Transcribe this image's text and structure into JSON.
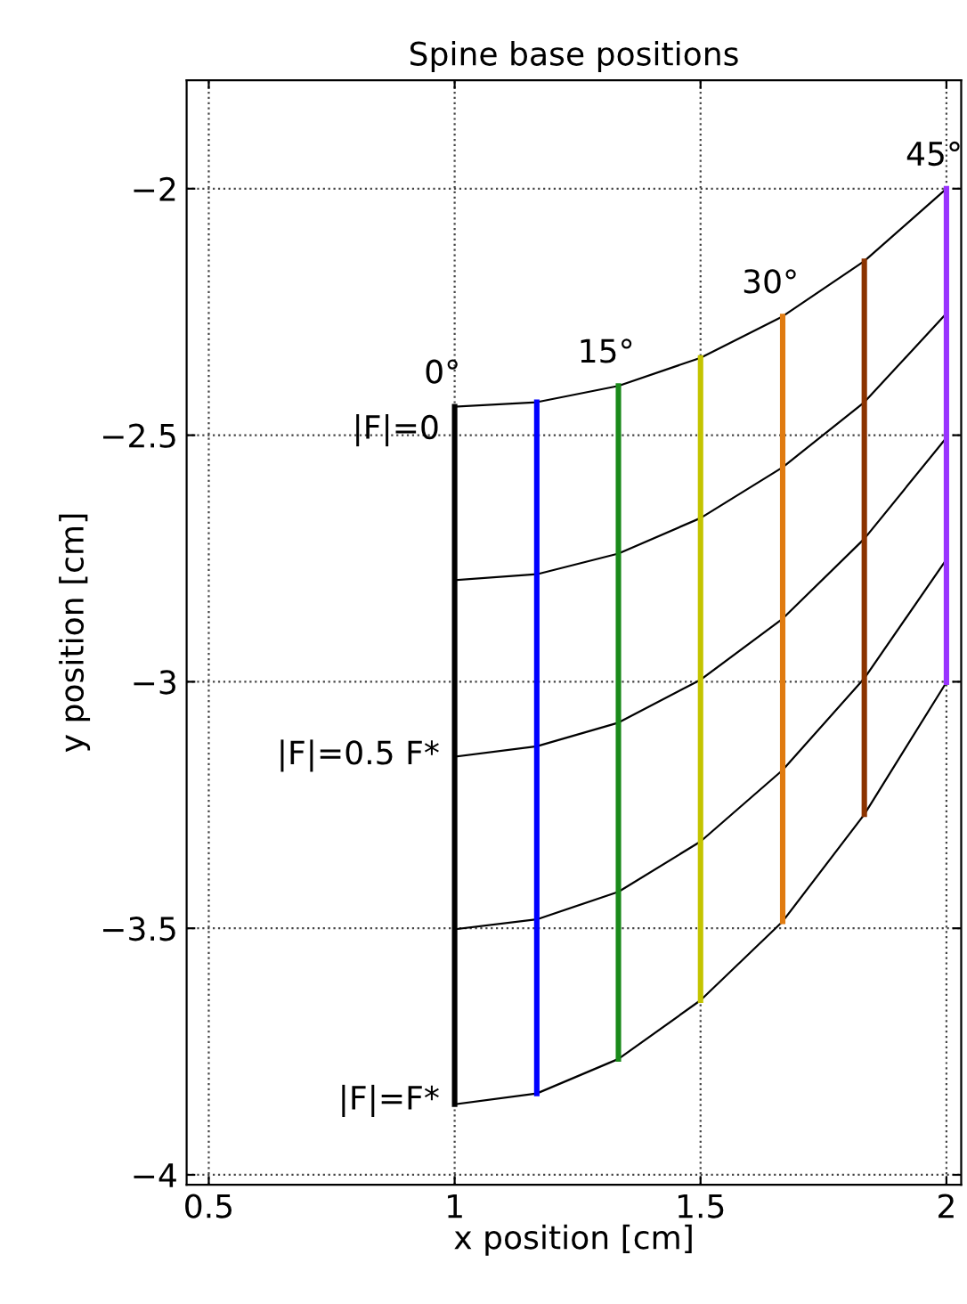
{
  "chart_data": {
    "type": "line",
    "title": "Spine base positions",
    "xlabel": "x position [cm]",
    "ylabel": "y position [cm]",
    "x": [
      1,
      1.167,
      1.333,
      1.5,
      1.667,
      1.833,
      2
    ],
    "series": [
      {
        "color": "#000000",
        "values": [
          -2.442,
          -2.433,
          -2.4,
          -2.343,
          -2.259,
          -2.147,
          -2.0
        ]
      },
      {
        "color": "#000000",
        "values": [
          -2.794,
          -2.782,
          -2.74,
          -2.668,
          -2.565,
          -2.433,
          -2.253
        ]
      },
      {
        "color": "#000000",
        "values": [
          -3.152,
          -3.131,
          -3.083,
          -2.996,
          -2.872,
          -2.71,
          -2.505
        ]
      },
      {
        "color": "#000000",
        "values": [
          -3.502,
          -3.482,
          -3.426,
          -3.324,
          -3.179,
          -2.993,
          -2.752
        ]
      },
      {
        "color": "#000000",
        "values": [
          -3.857,
          -3.835,
          -3.765,
          -3.646,
          -3.486,
          -3.269,
          -3.001
        ]
      },
      {
        "color": "#000000",
        "x": [
          1,
          1
        ],
        "values": [
          -2.442,
          -3.857
        ]
      },
      {
        "color": "#0000ff",
        "x": [
          1.167,
          1.167
        ],
        "values": [
          -2.433,
          -3.835
        ]
      },
      {
        "color": "#1a8a1a",
        "x": [
          1.333,
          1.333
        ],
        "values": [
          -2.4,
          -3.765
        ]
      },
      {
        "color": "#c4c400",
        "x": [
          1.5,
          1.5
        ],
        "values": [
          -2.343,
          -3.646
        ]
      },
      {
        "color": "#e07b10",
        "x": [
          1.667,
          1.667
        ],
        "values": [
          -2.259,
          -3.486
        ]
      },
      {
        "color": "#8b3300",
        "x": [
          1.833,
          1.833
        ],
        "values": [
          -2.147,
          -3.269
        ]
      },
      {
        "color": "#9933ff",
        "x": [
          2,
          2
        ],
        "values": [
          -2.0,
          -3.001
        ]
      }
    ],
    "annotations": [
      {
        "text": "|F|=0",
        "x": 1,
        "y": -2.49
      },
      {
        "text": "|F|=0.5 F*",
        "x": 1,
        "y": -3.15
      },
      {
        "text": "|F|=F*",
        "x": 1,
        "y": -3.85
      },
      {
        "text": "0°",
        "x": 1,
        "y": -2.442
      },
      {
        "text": "15°",
        "x": 1.333,
        "y": -2.4
      },
      {
        "text": "30°",
        "x": 1.667,
        "y": -2.259
      },
      {
        "text": "45°",
        "x": 2,
        "y": -2.0
      }
    ],
    "xlim": [
      0.455,
      2.03
    ],
    "ylim": [
      -4.02,
      -1.78
    ],
    "xticks": [
      0.5,
      1,
      1.5,
      2
    ],
    "yticks": [
      {
        "value": -4,
        "label": "−4"
      },
      {
        "value": -3.5,
        "label": "−3.5"
      },
      {
        "value": -3,
        "label": "−3"
      },
      {
        "value": -2.5,
        "label": "−2.5"
      },
      {
        "value": -2,
        "label": "−2"
      }
    ],
    "grid": true,
    "marker": "none",
    "line_style": "solid",
    "legend": false
  }
}
